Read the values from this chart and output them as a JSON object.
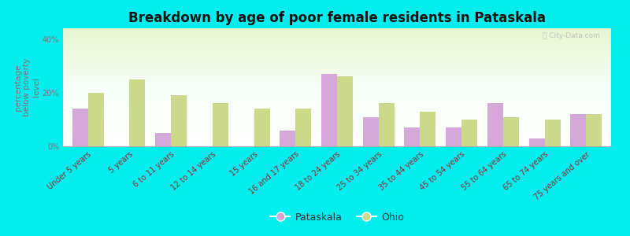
{
  "title": "Breakdown by age of poor female residents in Pataskala",
  "ylabel": "percentage\nbelow poverty\nlevel",
  "categories": [
    "Under 5 years",
    "5 years",
    "6 to 11 years",
    "12 to 14 years",
    "15 years",
    "16 and 17 years",
    "18 to 24 years",
    "25 to 34 years",
    "35 to 44 years",
    "45 to 54 years",
    "55 to 64 years",
    "65 to 74 years",
    "75 years and over"
  ],
  "pataskala_values": [
    14,
    0,
    5,
    0,
    0,
    6,
    27,
    11,
    7,
    7,
    16,
    3,
    12
  ],
  "ohio_values": [
    20,
    25,
    19,
    16,
    14,
    14,
    26,
    16,
    13,
    10,
    11,
    10,
    12
  ],
  "pataskala_color": "#d4a8d8",
  "ohio_color": "#cdd98a",
  "outer_bg": "#00eeee",
  "yticks": [
    0,
    20,
    40
  ],
  "ytick_labels": [
    "0%",
    "20%",
    "40%"
  ],
  "ylim": [
    0,
    44
  ],
  "bar_width": 0.38,
  "title_fontsize": 12,
  "axis_label_fontsize": 7.5,
  "tick_fontsize": 7,
  "legend_fontsize": 9
}
